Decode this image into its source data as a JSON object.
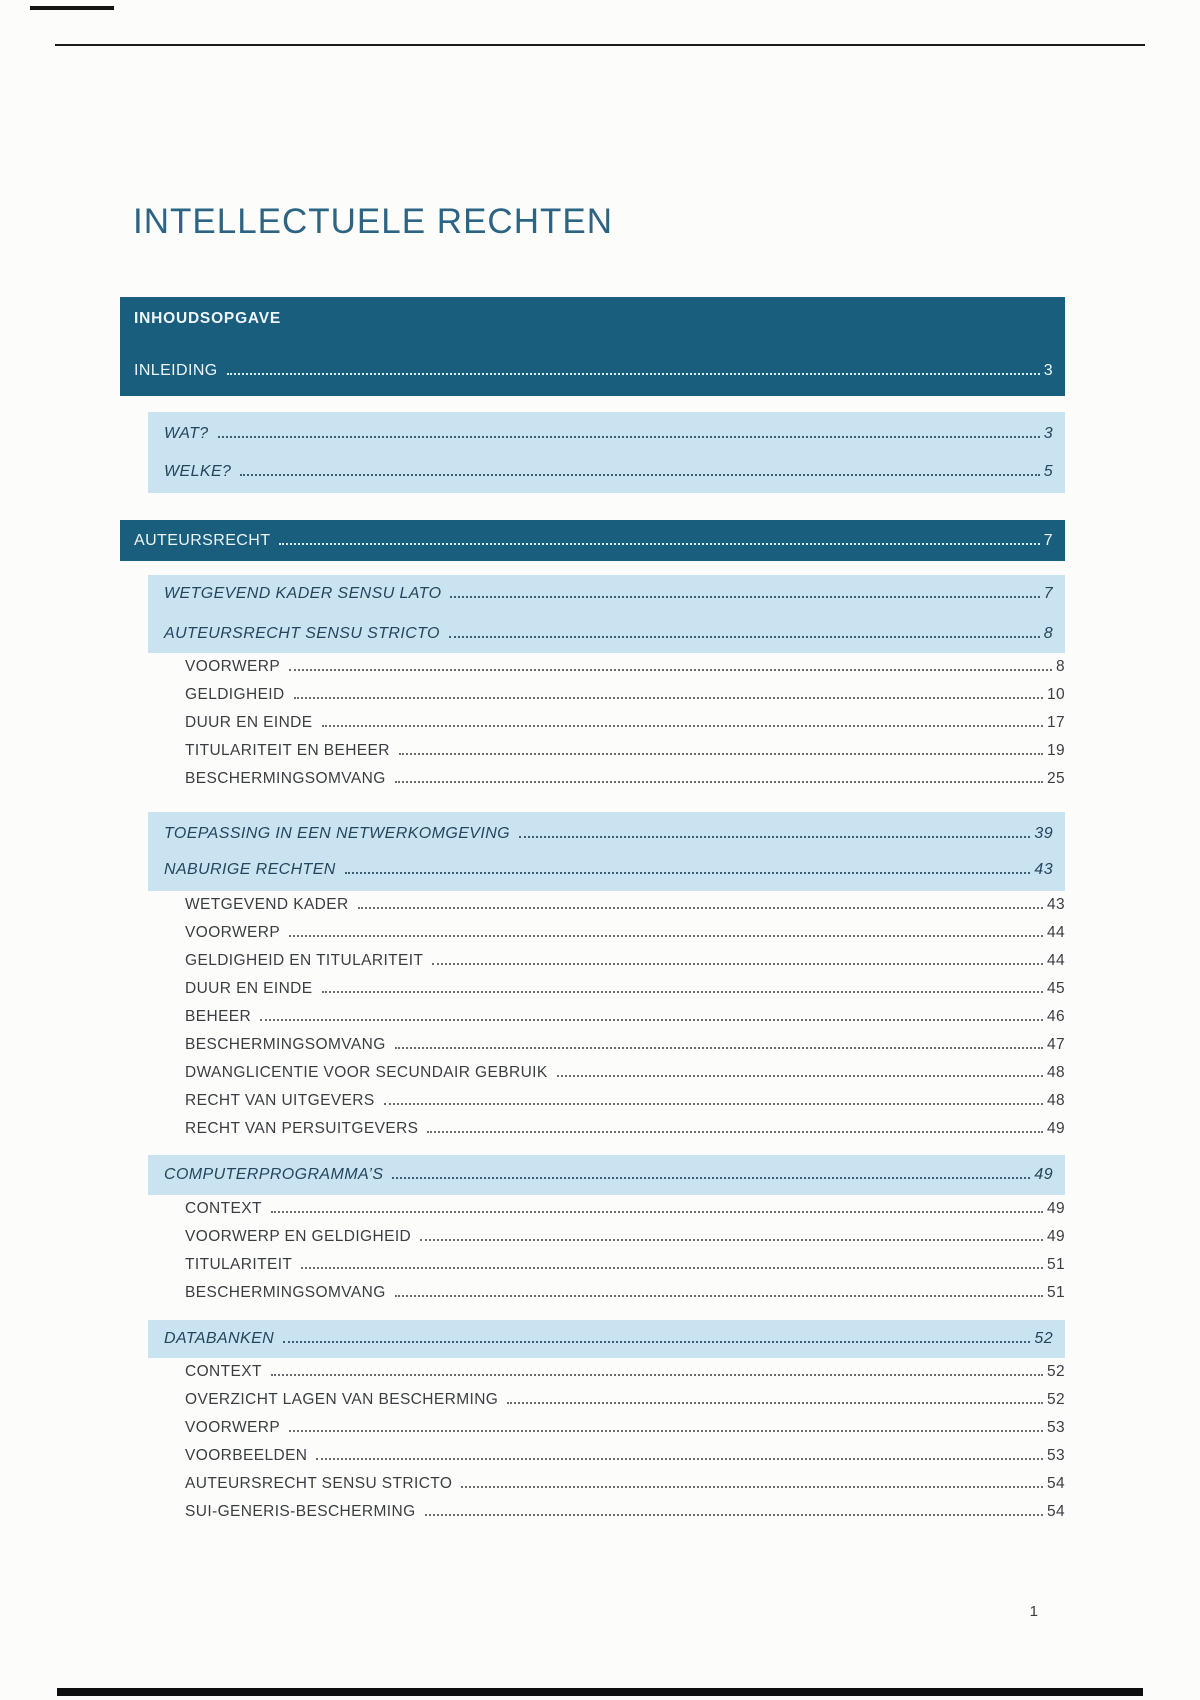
{
  "page": {
    "title": "INTELLECTUELE RECHTEN",
    "page_number": "1"
  },
  "colors": {
    "dark_band": "#1a5e7e",
    "light_band": "#c9e3f1",
    "title_text": "#2c6484",
    "band_text": "#eef5f9",
    "italic_text": "#24465c",
    "item_text": "#3a3e41"
  },
  "toc": {
    "blocks": [
      {
        "style": "dark",
        "header": "INHOUDSOPGAVE",
        "entries": [
          {
            "label": "INLEIDING",
            "page": "3"
          }
        ]
      },
      {
        "style": "light",
        "entries": [
          {
            "label": "WAT?",
            "page": "3"
          },
          {
            "label": "WELKE?",
            "page": "5"
          }
        ]
      },
      {
        "style": "dark",
        "entries": [
          {
            "label": "AUTEURSRECHT",
            "page": "7"
          }
        ]
      },
      {
        "style": "light",
        "entries": [
          {
            "label": "WETGEVEND KADER SENSU LATO",
            "page": "7"
          },
          {
            "label": "AUTEURSRECHT SENSU STRICTO",
            "page": "8"
          }
        ]
      },
      {
        "style": "plain",
        "entries": [
          {
            "label": "VOORWERP",
            "page": "8"
          },
          {
            "label": "GELDIGHEID",
            "page": "10"
          },
          {
            "label": "DUUR EN EINDE",
            "page": "17"
          },
          {
            "label": "TITULARITEIT EN BEHEER",
            "page": "19"
          },
          {
            "label": "BESCHERMINGSOMVANG",
            "page": "25"
          }
        ]
      },
      {
        "style": "light",
        "entries": [
          {
            "label": "TOEPASSING IN EEN NETWERKOMGEVING",
            "page": "39"
          },
          {
            "label": "NABURIGE RECHTEN",
            "page": "43"
          }
        ]
      },
      {
        "style": "plain",
        "entries": [
          {
            "label": "WETGEVEND KADER",
            "page": "43"
          },
          {
            "label": "VOORWERP",
            "page": "44"
          },
          {
            "label": "GELDIGHEID EN TITULARITEIT",
            "page": "44"
          },
          {
            "label": "DUUR EN EINDE",
            "page": "45"
          },
          {
            "label": "BEHEER",
            "page": "46"
          },
          {
            "label": "BESCHERMINGSOMVANG",
            "page": "47"
          },
          {
            "label": "DWANGLICENTIE VOOR SECUNDAIR GEBRUIK",
            "page": "48"
          },
          {
            "label": "RECHT VAN UITGEVERS",
            "page": "48"
          },
          {
            "label": "RECHT VAN PERSUITGEVERS",
            "page": "49"
          }
        ]
      },
      {
        "style": "light",
        "entries": [
          {
            "label": "COMPUTERPROGRAMMA’S",
            "page": "49"
          }
        ]
      },
      {
        "style": "plain",
        "entries": [
          {
            "label": "CONTEXT",
            "page": "49"
          },
          {
            "label": "VOORWERP EN GELDIGHEID",
            "page": "49"
          },
          {
            "label": "TITULARITEIT",
            "page": "51"
          },
          {
            "label": "BESCHERMINGSOMVANG",
            "page": "51"
          }
        ]
      },
      {
        "style": "light",
        "entries": [
          {
            "label": "DATABANKEN",
            "page": "52"
          }
        ]
      },
      {
        "style": "plain",
        "entries": [
          {
            "label": "CONTEXT",
            "page": "52"
          },
          {
            "label": "OVERZICHT LAGEN VAN BESCHERMING",
            "page": "52"
          },
          {
            "label": "VOORWERP",
            "page": "53"
          },
          {
            "label": "VOORBEELDEN",
            "page": "53"
          },
          {
            "label": "AUTEURSRECHT SENSU STRICTO",
            "page": "54"
          },
          {
            "label": "SUI-GENERIS-BESCHERMING",
            "page": "54"
          }
        ]
      }
    ]
  }
}
